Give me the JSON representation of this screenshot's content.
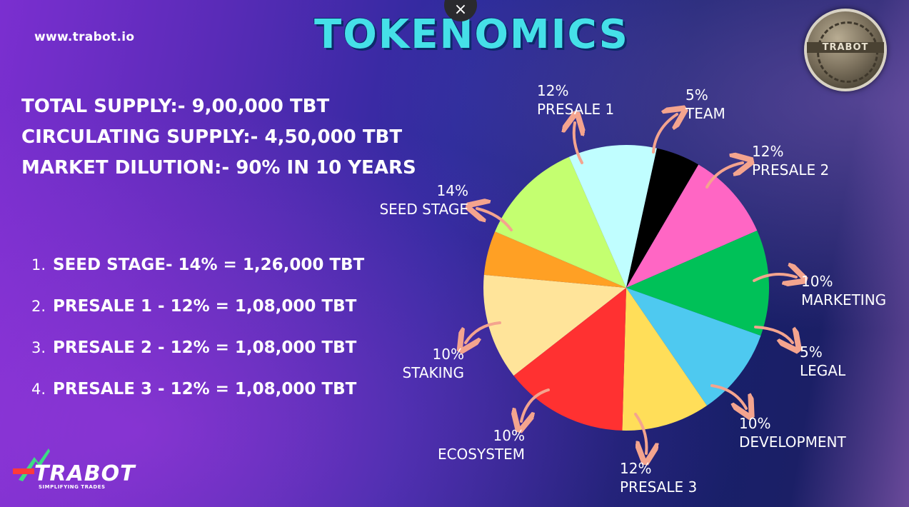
{
  "header": {
    "url": "www.trabot.io",
    "title": "TOKENOMICS",
    "close_glyph": "×",
    "coin_text": "TRABOT"
  },
  "stats": [
    "TOTAL SUPPLY:- 9,00,000 TBT",
    "CIRCULATING SUPPLY:- 4,50,000 TBT",
    "MARKET DILUTION:- 90% IN 10 YEARS"
  ],
  "allocation_list": [
    {
      "num": "1.",
      "text": "SEED STAGE- 14% = 1,26,000 TBT"
    },
    {
      "num": "2.",
      "text": "PRESALE 1 - 12% = 1,08,000 TBT"
    },
    {
      "num": "3.",
      "text": "PRESALE 2 - 12% = 1,08,000 TBT"
    },
    {
      "num": "4.",
      "text": "PRESALE 3 - 12% = 1,08,000 TBT"
    }
  ],
  "logo": {
    "word": "TRABOT",
    "tagline": "SIMPLIFYING TRADES"
  },
  "chart_data": {
    "type": "pie",
    "slices": [
      {
        "name": "PRESALE 1",
        "percent_label": "12%",
        "value": 12,
        "color": "#ffe49a"
      },
      {
        "name": "TEAM",
        "percent_label": "5%",
        "value": 5,
        "color": "#ffa024"
      },
      {
        "name": "PRESALE 2",
        "percent_label": "12%",
        "value": 12,
        "color": "#c4ff70"
      },
      {
        "name": "MARKETING",
        "percent_label": "10%",
        "value": 10,
        "color": "#c0feff"
      },
      {
        "name": "LEGAL",
        "percent_label": "5%",
        "value": 5,
        "color": "#000000"
      },
      {
        "name": "DEVELOPMENT",
        "percent_label": "10%",
        "value": 10,
        "color": "#ff66c4"
      },
      {
        "name": "PRESALE 3",
        "percent_label": "12%",
        "value": 12,
        "color": "#00c158"
      },
      {
        "name": "ECOSYSTEM",
        "percent_label": "10%",
        "value": 10,
        "color": "#4ec9f0"
      },
      {
        "name": "STAKING",
        "percent_label": "10%",
        "value": 10,
        "color": "#ffde59"
      },
      {
        "name": "SEED STAGE",
        "percent_label": "14%",
        "value": 14,
        "color": "#ff3131"
      }
    ],
    "arrow_color": "#f4a48e"
  }
}
